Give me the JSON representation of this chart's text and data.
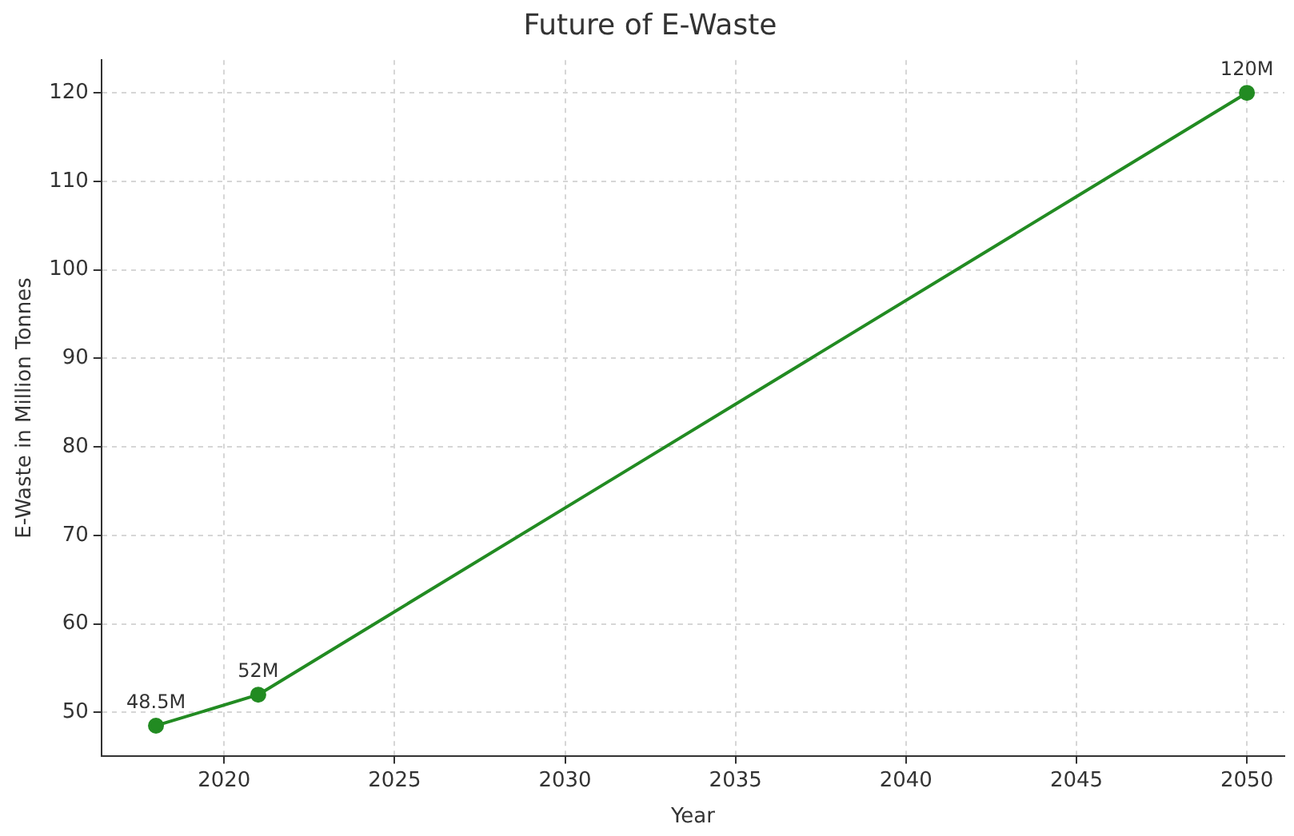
{
  "chart_data": {
    "type": "line",
    "title": "Future of E-Waste",
    "xlabel": "Year",
    "ylabel": "E-Waste in Million Tonnes",
    "x": [
      2018,
      2021,
      2050
    ],
    "series": [
      {
        "color": "#228b22",
        "values": [
          48.5,
          52,
          120
        ],
        "value_labels": [
          "48.5M",
          "52M",
          "120M"
        ]
      }
    ],
    "xlim": [
      2016.4,
      2051.1
    ],
    "xticks": [
      2020,
      2025,
      2030,
      2035,
      2040,
      2045,
      2050
    ],
    "ylim": [
      45.1,
      123.7
    ],
    "yticks": [
      50,
      60,
      70,
      80,
      90,
      100,
      110,
      120
    ],
    "grid": true,
    "marker": "circle",
    "line_style": "solid"
  }
}
